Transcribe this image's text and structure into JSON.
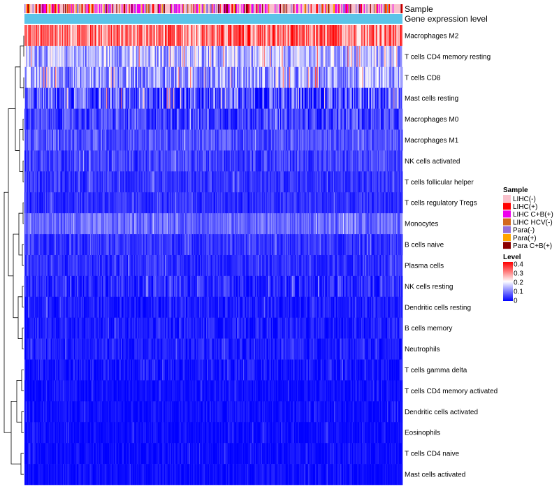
{
  "chart_data": {
    "type": "heatmap",
    "annotation_tracks": [
      {
        "name": "Sample",
        "label": "Sample"
      },
      {
        "name": "Gene expression level",
        "label": "Gene expression level",
        "color": "#5bc3e8"
      }
    ],
    "rows": [
      {
        "label": "Macrophages M2",
        "mean": 0.3,
        "spread": 0.1
      },
      {
        "label": "T cells CD4 memory resting",
        "mean": 0.14,
        "spread": 0.08
      },
      {
        "label": "T cells CD8",
        "mean": 0.12,
        "spread": 0.09
      },
      {
        "label": "Mast cells resting",
        "mean": 0.06,
        "spread": 0.1
      },
      {
        "label": "Macrophages M0",
        "mean": 0.05,
        "spread": 0.05
      },
      {
        "label": "Macrophages M1",
        "mean": 0.06,
        "spread": 0.04
      },
      {
        "label": "NK cells activated",
        "mean": 0.05,
        "spread": 0.04
      },
      {
        "label": "T cells follicular helper",
        "mean": 0.04,
        "spread": 0.03
      },
      {
        "label": "T cells regulatory  Tregs",
        "mean": 0.035,
        "spread": 0.03
      },
      {
        "label": "Monocytes",
        "mean": 0.08,
        "spread": 0.04
      },
      {
        "label": "B cells naive",
        "mean": 0.04,
        "spread": 0.03
      },
      {
        "label": "Plasma cells",
        "mean": 0.035,
        "spread": 0.03
      },
      {
        "label": "NK cells resting",
        "mean": 0.03,
        "spread": 0.04
      },
      {
        "label": "Dendritic cells resting",
        "mean": 0.02,
        "spread": 0.03
      },
      {
        "label": "B cells memory",
        "mean": 0.02,
        "spread": 0.03
      },
      {
        "label": "Neutrophils",
        "mean": 0.02,
        "spread": 0.025
      },
      {
        "label": "T cells gamma delta",
        "mean": 0.015,
        "spread": 0.03
      },
      {
        "label": "T cells CD4 memory activated",
        "mean": 0.01,
        "spread": 0.02
      },
      {
        "label": "Dendritic cells activated",
        "mean": 0.01,
        "spread": 0.02
      },
      {
        "label": "Eosinophils",
        "mean": 0.008,
        "spread": 0.02
      },
      {
        "label": "T cells CD4 naive",
        "mean": 0.008,
        "spread": 0.02
      },
      {
        "label": "Mast cells activated",
        "mean": 0.008,
        "spread": 0.02
      }
    ],
    "n_samples": 420,
    "sample_legend": {
      "title": "Sample",
      "items": [
        {
          "label": "LIHC(-)",
          "color": "#f9c0cb"
        },
        {
          "label": "LIHC(+)",
          "color": "#ff0000"
        },
        {
          "label": "LIHC C+B(+)",
          "color": "#ee00ee"
        },
        {
          "label": "LIHC HCV(-)",
          "color": "#d2691e"
        },
        {
          "label": "Para(-)",
          "color": "#9370db"
        },
        {
          "label": "Para(+)",
          "color": "#ffa500"
        },
        {
          "label": "Para C+B(+)",
          "color": "#8b0000"
        }
      ],
      "weights": [
        0.45,
        0.06,
        0.22,
        0.06,
        0.1,
        0.06,
        0.05
      ]
    },
    "level_legend": {
      "title": "Level",
      "ticks": [
        "0.4",
        "0.3",
        "0.2",
        "0.1",
        "0"
      ],
      "range": [
        0,
        0.4
      ],
      "colors": [
        "#0000ff",
        "#ffffff",
        "#ff0000"
      ]
    }
  }
}
